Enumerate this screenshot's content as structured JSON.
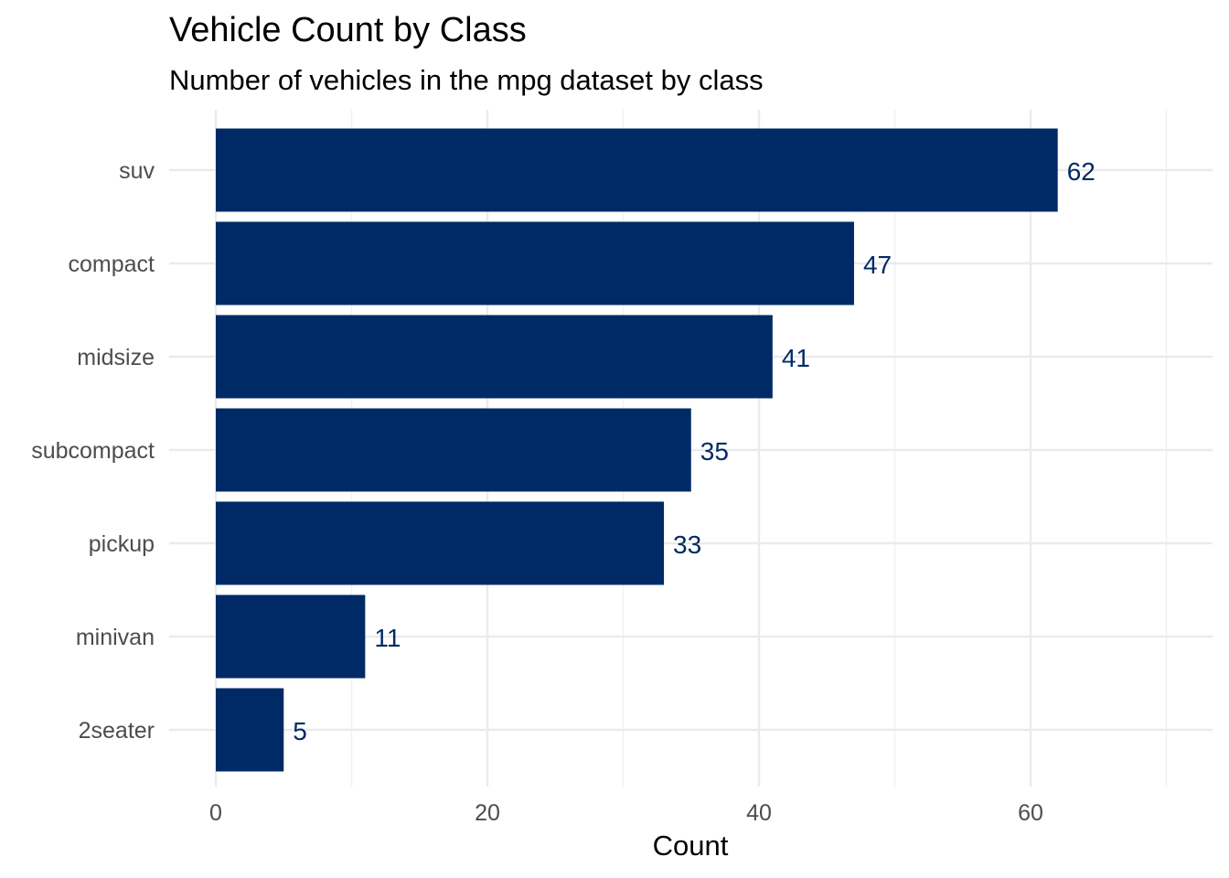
{
  "chart_data": {
    "type": "bar",
    "orientation": "horizontal",
    "title": "Vehicle Count by Class",
    "subtitle": "Number of vehicles in the mpg dataset by class",
    "xlabel": "Count",
    "ylabel": "",
    "categories": [
      "suv",
      "compact",
      "midsize",
      "subcompact",
      "pickup",
      "minivan",
      "2seater"
    ],
    "values": [
      62,
      47,
      41,
      35,
      33,
      11,
      5
    ],
    "x_ticks": [
      0,
      20,
      40,
      60
    ],
    "xlim": [
      0,
      70
    ],
    "grid": true,
    "legend": "none",
    "bar_color": "#002A66",
    "label_color": "#002A66"
  }
}
